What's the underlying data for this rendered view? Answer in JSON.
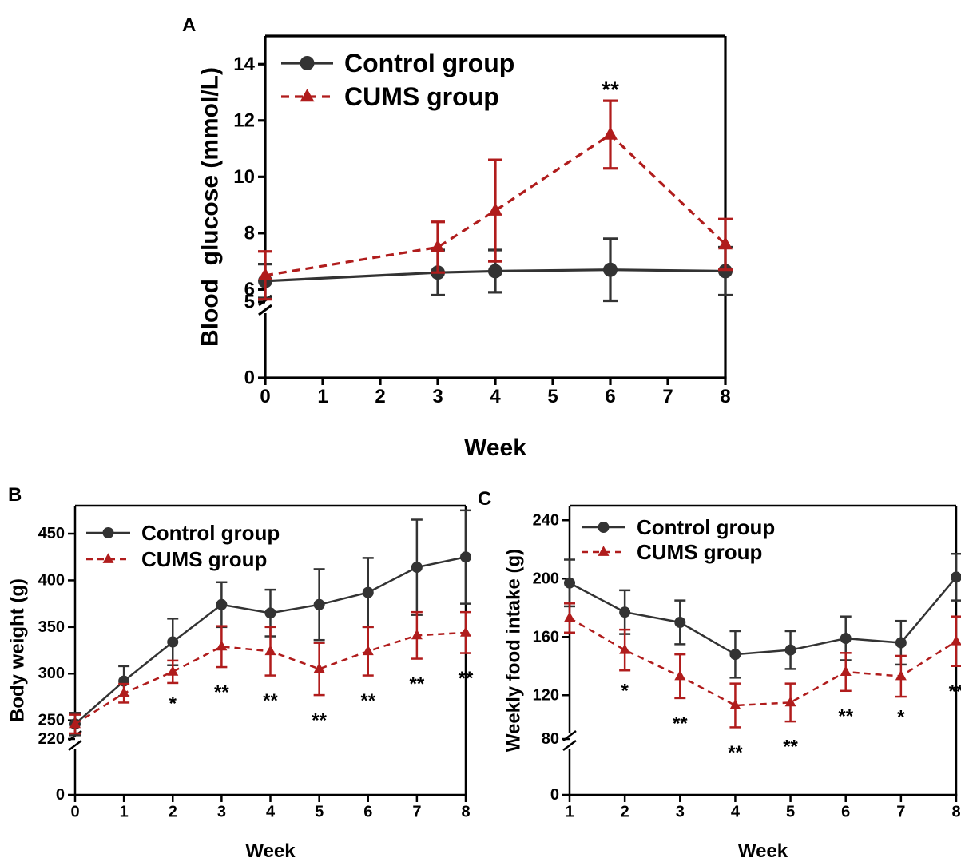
{
  "colors": {
    "control": "#333333",
    "cums": "#b01c1c"
  },
  "chart_data": [
    {
      "panel": "A",
      "type": "line",
      "xlabel": "Week",
      "ylabel": "Blood  glucose (mmol/L)",
      "x_ticks": [
        "0",
        "1",
        "2",
        "3",
        "4",
        "5",
        "6",
        "7",
        "8"
      ],
      "y_ticks_upper": [
        "6",
        "8",
        "10",
        "12",
        "14"
      ],
      "y_ticks_lower": [
        "0",
        "5"
      ],
      "ylim_upper": [
        5.5,
        15
      ],
      "ylim_lower": [
        0,
        5
      ],
      "xlim": [
        0,
        8
      ],
      "legend": [
        "Control group",
        "CUMS group"
      ],
      "series": [
        {
          "name": "Control group",
          "x": [
            0,
            3,
            4,
            6,
            8
          ],
          "y": [
            6.3,
            6.6,
            6.65,
            6.7,
            6.65
          ],
          "err": [
            0.6,
            0.8,
            0.75,
            1.1,
            0.85
          ]
        },
        {
          "name": "CUMS group",
          "x": [
            0,
            3,
            4,
            6,
            8
          ],
          "y": [
            6.5,
            7.5,
            8.8,
            11.5,
            7.6
          ],
          "err": [
            0.85,
            0.9,
            1.8,
            1.2,
            0.9
          ]
        }
      ],
      "annotations": [
        {
          "x": 6,
          "text": "**"
        }
      ]
    },
    {
      "panel": "B",
      "type": "line",
      "xlabel": "Week",
      "ylabel": "Body weight (g)",
      "x_ticks": [
        "0",
        "1",
        "2",
        "3",
        "4",
        "5",
        "6",
        "7",
        "8"
      ],
      "y_ticks_upper": [
        "250",
        "300",
        "350",
        "400",
        "450"
      ],
      "y_ticks_lower": [
        "0",
        "220"
      ],
      "ylim_upper": [
        230,
        480
      ],
      "ylim_lower": [
        0,
        220
      ],
      "xlim": [
        0,
        8
      ],
      "legend": [
        "Control group",
        "CUMS group"
      ],
      "series": [
        {
          "name": "Control group",
          "x": [
            0,
            1,
            2,
            3,
            4,
            5,
            6,
            7,
            8
          ],
          "y": [
            246,
            292,
            334,
            374,
            365,
            374,
            387,
            414,
            425
          ],
          "err": [
            12,
            16,
            25,
            24,
            25,
            38,
            37,
            51,
            50
          ]
        },
        {
          "name": "CUMS group",
          "x": [
            0,
            1,
            2,
            3,
            4,
            5,
            6,
            7,
            8
          ],
          "y": [
            246,
            279,
            302,
            329,
            324,
            305,
            324,
            341,
            344
          ],
          "err": [
            10,
            10,
            12,
            22,
            26,
            28,
            26,
            25,
            22
          ]
        }
      ],
      "annotations": [
        {
          "x": 2,
          "text": "*"
        },
        {
          "x": 3,
          "text": "**"
        },
        {
          "x": 4,
          "text": "**"
        },
        {
          "x": 5,
          "text": "**"
        },
        {
          "x": 6,
          "text": "**"
        },
        {
          "x": 7,
          "text": "**"
        },
        {
          "x": 8,
          "text": "**"
        }
      ]
    },
    {
      "panel": "C",
      "type": "line",
      "xlabel": "Week",
      "ylabel": "Weekly food intake (g)",
      "x_ticks": [
        "1",
        "2",
        "3",
        "4",
        "5",
        "6",
        "7",
        "8"
      ],
      "y_ticks_upper": [
        "120",
        "160",
        "200",
        "240"
      ],
      "y_ticks_lower": [
        "0",
        "80"
      ],
      "ylim_upper": [
        90,
        250
      ],
      "ylim_lower": [
        0,
        80
      ],
      "xlim": [
        1,
        8
      ],
      "legend": [
        "Control group",
        "CUMS group"
      ],
      "series": [
        {
          "name": "Control group",
          "x": [
            1,
            2,
            3,
            4,
            5,
            6,
            7,
            8
          ],
          "y": [
            197,
            177,
            170,
            148,
            151,
            159,
            156,
            201
          ],
          "err": [
            16,
            15,
            15,
            16,
            13,
            15,
            15,
            16
          ]
        },
        {
          "name": "CUMS group",
          "x": [
            1,
            2,
            3,
            4,
            5,
            6,
            7,
            8
          ],
          "y": [
            173,
            151,
            133,
            113,
            115,
            136,
            133,
            157
          ],
          "err": [
            10,
            14,
            15,
            15,
            13,
            13,
            14,
            17
          ]
        }
      ],
      "annotations": [
        {
          "x": 2,
          "text": "*"
        },
        {
          "x": 3,
          "text": "**"
        },
        {
          "x": 4,
          "text": "**"
        },
        {
          "x": 5,
          "text": "**"
        },
        {
          "x": 6,
          "text": "**"
        },
        {
          "x": 7,
          "text": "*"
        },
        {
          "x": 8,
          "text": "**"
        }
      ]
    }
  ]
}
